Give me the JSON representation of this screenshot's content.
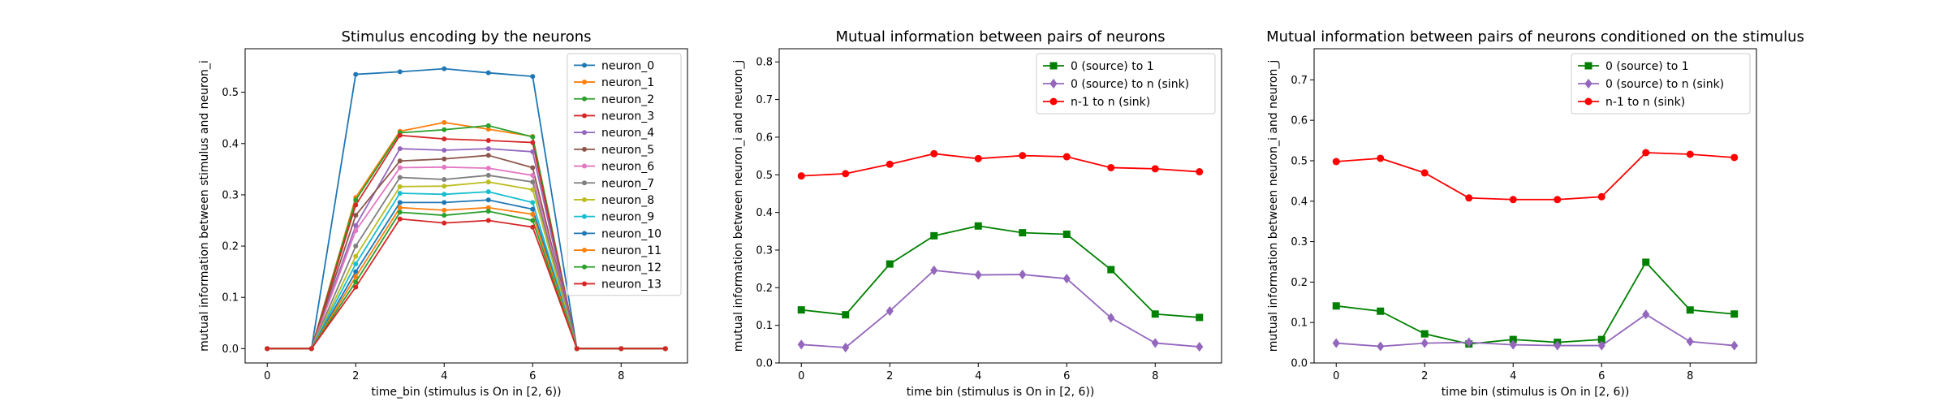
{
  "chart_data": [
    {
      "type": "line",
      "title": "Stimulus encoding by the neurons",
      "xlabel": "time_bin (stimulus is On in [2, 6))",
      "ylabel": "mutual information between stimulus and neuron_i",
      "xlim": [
        -0.5,
        9.5
      ],
      "ylim": [
        -0.028,
        0.585
      ],
      "xticks": [
        0,
        2,
        4,
        6,
        8
      ],
      "yticks": [
        0.0,
        0.1,
        0.2,
        0.3,
        0.4,
        0.5
      ],
      "ytick_decimals": 1,
      "legend": "upper-right",
      "x": [
        0,
        1,
        2,
        3,
        4,
        5,
        6,
        7,
        8,
        9
      ],
      "series": [
        {
          "name": "neuron_0",
          "color": "#1f77b4",
          "marker": "circle",
          "values": [
            0,
            0,
            0.535,
            0.54,
            0.546,
            0.538,
            0.531,
            0,
            0,
            0
          ]
        },
        {
          "name": "neuron_1",
          "color": "#ff7f0e",
          "marker": "circle",
          "values": [
            0,
            0,
            0.295,
            0.424,
            0.441,
            0.428,
            0.414,
            0,
            0,
            0
          ]
        },
        {
          "name": "neuron_2",
          "color": "#2ca02c",
          "marker": "circle",
          "values": [
            0,
            0,
            0.29,
            0.421,
            0.427,
            0.435,
            0.413,
            0,
            0,
            0
          ]
        },
        {
          "name": "neuron_3",
          "color": "#d62728",
          "marker": "circle",
          "values": [
            0,
            0,
            0.28,
            0.416,
            0.409,
            0.406,
            0.402,
            0,
            0,
            0
          ]
        },
        {
          "name": "neuron_4",
          "color": "#9467bd",
          "marker": "circle",
          "values": [
            0,
            0,
            0.24,
            0.39,
            0.387,
            0.39,
            0.384,
            0,
            0,
            0
          ]
        },
        {
          "name": "neuron_5",
          "color": "#8c564b",
          "marker": "circle",
          "values": [
            0,
            0,
            0.26,
            0.366,
            0.37,
            0.377,
            0.353,
            0,
            0,
            0
          ]
        },
        {
          "name": "neuron_6",
          "color": "#e377c2",
          "marker": "circle",
          "values": [
            0,
            0,
            0.23,
            0.353,
            0.354,
            0.352,
            0.338,
            0,
            0,
            0
          ]
        },
        {
          "name": "neuron_7",
          "color": "#7f7f7f",
          "marker": "circle",
          "values": [
            0,
            0,
            0.2,
            0.334,
            0.33,
            0.338,
            0.325,
            0,
            0,
            0
          ]
        },
        {
          "name": "neuron_8",
          "color": "#bcbd22",
          "marker": "circle",
          "values": [
            0,
            0,
            0.18,
            0.316,
            0.317,
            0.325,
            0.31,
            0,
            0,
            0
          ]
        },
        {
          "name": "neuron_9",
          "color": "#17becf",
          "marker": "circle",
          "values": [
            0,
            0,
            0.165,
            0.303,
            0.301,
            0.306,
            0.285,
            0,
            0,
            0
          ]
        },
        {
          "name": "neuron_10",
          "color": "#1f77b4",
          "marker": "circle",
          "values": [
            0,
            0,
            0.15,
            0.285,
            0.285,
            0.29,
            0.272,
            0,
            0,
            0
          ]
        },
        {
          "name": "neuron_11",
          "color": "#ff7f0e",
          "marker": "circle",
          "values": [
            0,
            0,
            0.14,
            0.275,
            0.27,
            0.275,
            0.262,
            0,
            0,
            0
          ]
        },
        {
          "name": "neuron_12",
          "color": "#2ca02c",
          "marker": "circle",
          "values": [
            0,
            0,
            0.13,
            0.266,
            0.26,
            0.268,
            0.25,
            0,
            0,
            0
          ]
        },
        {
          "name": "neuron_13",
          "color": "#d62728",
          "marker": "circle",
          "values": [
            0,
            0,
            0.12,
            0.253,
            0.245,
            0.25,
            0.237,
            0,
            0,
            0
          ]
        }
      ]
    },
    {
      "type": "line",
      "title": "Mutual information between pairs of neurons",
      "xlabel": "time bin (stimulus is On in [2, 6))",
      "ylabel": "mutual information between neuron_i and neuron_j",
      "xlim": [
        -0.5,
        9.5
      ],
      "ylim": [
        0.0,
        0.835
      ],
      "xticks": [
        0,
        2,
        4,
        6,
        8
      ],
      "yticks": [
        0.0,
        0.1,
        0.2,
        0.3,
        0.4,
        0.5,
        0.6,
        0.7,
        0.8
      ],
      "ytick_decimals": 1,
      "legend": "upper-right",
      "x": [
        0,
        1,
        2,
        3,
        4,
        5,
        6,
        7,
        8,
        9
      ],
      "series": [
        {
          "name": "0 (source) to 1",
          "color": "#008000",
          "marker": "square",
          "values": [
            0.141,
            0.128,
            0.263,
            0.338,
            0.364,
            0.346,
            0.342,
            0.248,
            0.13,
            0.121
          ]
        },
        {
          "name": "0 (source) to n (sink)",
          "color": "#9467bd",
          "marker": "diamond",
          "values": [
            0.049,
            0.041,
            0.138,
            0.246,
            0.234,
            0.235,
            0.224,
            0.12,
            0.053,
            0.043
          ]
        },
        {
          "name": "n-1 to n (sink)",
          "color": "#ff0000",
          "marker": "circle",
          "values": [
            0.497,
            0.503,
            0.528,
            0.556,
            0.543,
            0.551,
            0.548,
            0.519,
            0.516,
            0.508
          ]
        }
      ]
    },
    {
      "type": "line",
      "title": "Mutual information between pairs of neurons conditioned on the stimulus",
      "xlabel": "time bin (stimulus is On in [2, 6))",
      "ylabel": "mutual information between neuron_i and neuron_j",
      "xlim": [
        -0.5,
        9.5
      ],
      "ylim": [
        0.0,
        0.777
      ],
      "xticks": [
        0,
        2,
        4,
        6,
        8
      ],
      "yticks": [
        0.0,
        0.1,
        0.2,
        0.3,
        0.4,
        0.5,
        0.6,
        0.7
      ],
      "ytick_decimals": 1,
      "legend": "upper-right",
      "x": [
        0,
        1,
        2,
        3,
        4,
        5,
        6,
        7,
        8,
        9
      ],
      "series": [
        {
          "name": "0 (source) to 1",
          "color": "#008000",
          "marker": "square",
          "values": [
            0.141,
            0.128,
            0.072,
            0.047,
            0.058,
            0.051,
            0.058,
            0.249,
            0.131,
            0.121
          ]
        },
        {
          "name": "0 (source) to n (sink)",
          "color": "#9467bd",
          "marker": "diamond",
          "values": [
            0.049,
            0.041,
            0.049,
            0.051,
            0.045,
            0.043,
            0.043,
            0.12,
            0.053,
            0.043
          ]
        },
        {
          "name": "n-1 to n (sink)",
          "color": "#ff0000",
          "marker": "circle",
          "values": [
            0.498,
            0.506,
            0.47,
            0.408,
            0.404,
            0.404,
            0.411,
            0.52,
            0.516,
            0.508
          ]
        }
      ]
    }
  ]
}
